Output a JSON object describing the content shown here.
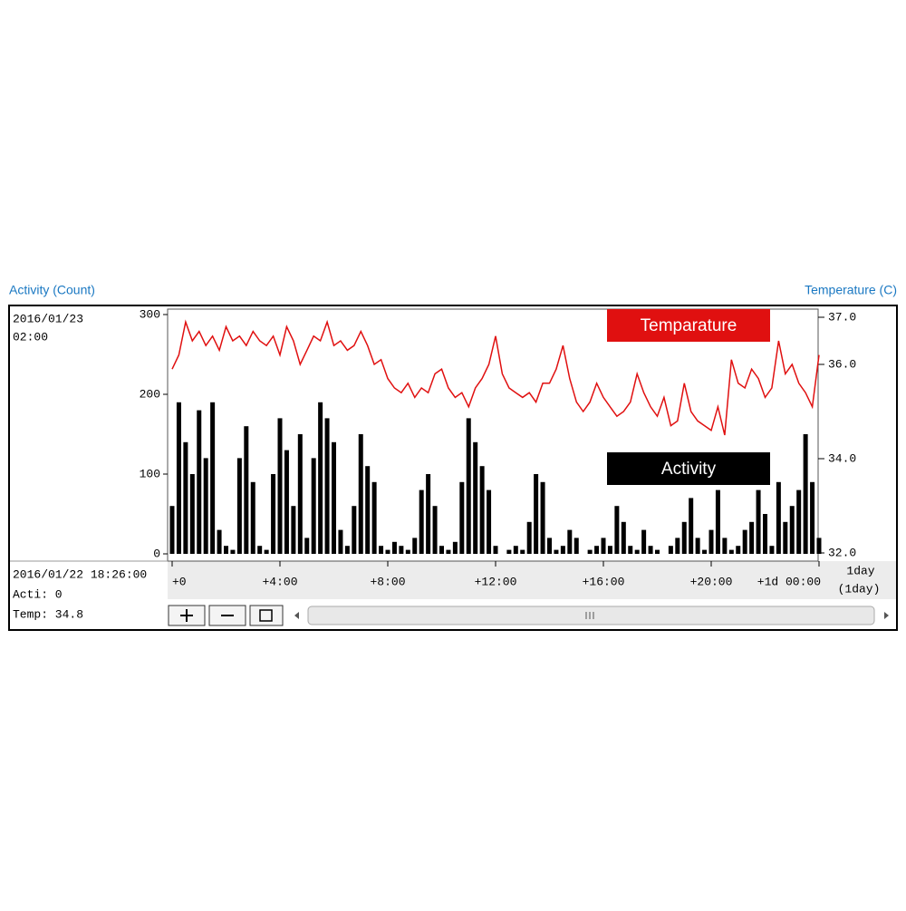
{
  "chart_data": {
    "type": "bar",
    "y_title": "Activity (Count)",
    "y2_title": "Temperature (C)",
    "x": [
      0,
      0.25,
      0.5,
      0.75,
      1,
      1.25,
      1.5,
      1.75,
      2,
      2.25,
      2.5,
      2.75,
      3,
      3.25,
      3.5,
      3.75,
      4,
      4.25,
      4.5,
      4.75,
      5,
      5.25,
      5.5,
      5.75,
      6,
      6.25,
      6.5,
      6.75,
      7,
      7.25,
      7.5,
      7.75,
      8,
      8.25,
      8.5,
      8.75,
      9,
      9.25,
      9.5,
      9.75,
      10,
      10.25,
      10.5,
      10.75,
      11,
      11.25,
      11.5,
      11.75,
      12,
      12.25,
      12.5,
      12.75,
      13,
      13.25,
      13.5,
      13.75,
      14,
      14.25,
      14.5,
      14.75,
      15,
      15.25,
      15.5,
      15.75,
      16,
      16.25,
      16.5,
      16.75,
      17,
      17.25,
      17.5,
      17.75,
      18,
      18.25,
      18.5,
      18.75,
      19,
      19.25,
      19.5,
      19.75,
      20,
      20.25,
      20.5,
      20.75,
      21,
      21.25,
      21.5,
      21.75,
      22,
      22.25,
      22.5,
      22.75,
      23,
      23.25,
      23.5,
      23.75,
      24
    ],
    "series": [
      {
        "name": "Activity",
        "type": "bar",
        "color": "#000000",
        "values": [
          60,
          190,
          140,
          100,
          180,
          120,
          190,
          30,
          10,
          5,
          120,
          160,
          90,
          10,
          5,
          100,
          170,
          130,
          60,
          150,
          20,
          120,
          190,
          170,
          140,
          30,
          10,
          60,
          150,
          110,
          90,
          10,
          5,
          15,
          10,
          5,
          20,
          80,
          100,
          60,
          10,
          5,
          15,
          90,
          170,
          140,
          110,
          80,
          10,
          0,
          5,
          10,
          5,
          40,
          100,
          90,
          20,
          5,
          10,
          30,
          20,
          0,
          5,
          10,
          20,
          10,
          60,
          40,
          10,
          5,
          30,
          10,
          5,
          0,
          10,
          20,
          40,
          70,
          20,
          5,
          30,
          80,
          20,
          5,
          10,
          30,
          40,
          80,
          50,
          10,
          90,
          40,
          60,
          80,
          150,
          90,
          20
        ]
      },
      {
        "name": "Temparature",
        "type": "line",
        "color": "#e01010",
        "axis": "y2",
        "values": [
          35.9,
          36.2,
          36.9,
          36.5,
          36.7,
          36.4,
          36.6,
          36.3,
          36.8,
          36.5,
          36.6,
          36.4,
          36.7,
          36.5,
          36.4,
          36.6,
          36.2,
          36.8,
          36.5,
          36.0,
          36.3,
          36.6,
          36.5,
          36.9,
          36.4,
          36.5,
          36.3,
          36.4,
          36.7,
          36.4,
          36.0,
          36.1,
          35.7,
          35.5,
          35.4,
          35.6,
          35.3,
          35.5,
          35.4,
          35.8,
          35.9,
          35.5,
          35.3,
          35.4,
          35.1,
          35.5,
          35.7,
          36.0,
          36.6,
          35.8,
          35.5,
          35.4,
          35.3,
          35.4,
          35.2,
          35.6,
          35.6,
          35.9,
          36.4,
          35.7,
          35.2,
          35.0,
          35.2,
          35.6,
          35.3,
          35.1,
          34.9,
          35.0,
          35.2,
          35.8,
          35.4,
          35.1,
          34.9,
          35.3,
          34.7,
          34.8,
          35.6,
          35.0,
          34.8,
          34.7,
          34.6,
          35.1,
          34.5,
          36.1,
          35.6,
          35.5,
          35.9,
          35.7,
          35.3,
          35.5,
          36.5,
          35.8,
          36.0,
          35.6,
          35.4,
          35.1,
          36.2
        ]
      }
    ],
    "xlim": [
      0,
      24
    ],
    "xticks": [
      {
        "value": 0,
        "label": "+0"
      },
      {
        "value": 4,
        "label": "+4:00"
      },
      {
        "value": 8,
        "label": "+8:00"
      },
      {
        "value": 12,
        "label": "+12:00"
      },
      {
        "value": 16,
        "label": "+16:00"
      },
      {
        "value": 20,
        "label": "+20:00"
      },
      {
        "value": 24,
        "label": "+1d 00:00"
      }
    ],
    "ylim": [
      0,
      300
    ],
    "yticks": [
      0,
      100,
      200,
      300
    ],
    "y2lim": [
      32,
      37
    ],
    "y2ticks": [
      {
        "value": 32,
        "label": "32.0"
      },
      {
        "value": 34,
        "label": "34.0"
      },
      {
        "value": 36,
        "label": "36.0"
      },
      {
        "value": 37,
        "label": "37.0"
      }
    ]
  },
  "ui": {
    "top_date": "2016/01/23",
    "top_time": "02:00",
    "cursor_time": "2016/01/22 18:26:00",
    "cursor_acti": "Acti: 0",
    "cursor_temp": "Temp: 34.8",
    "span": "1day",
    "span_paren": "(1day)"
  }
}
